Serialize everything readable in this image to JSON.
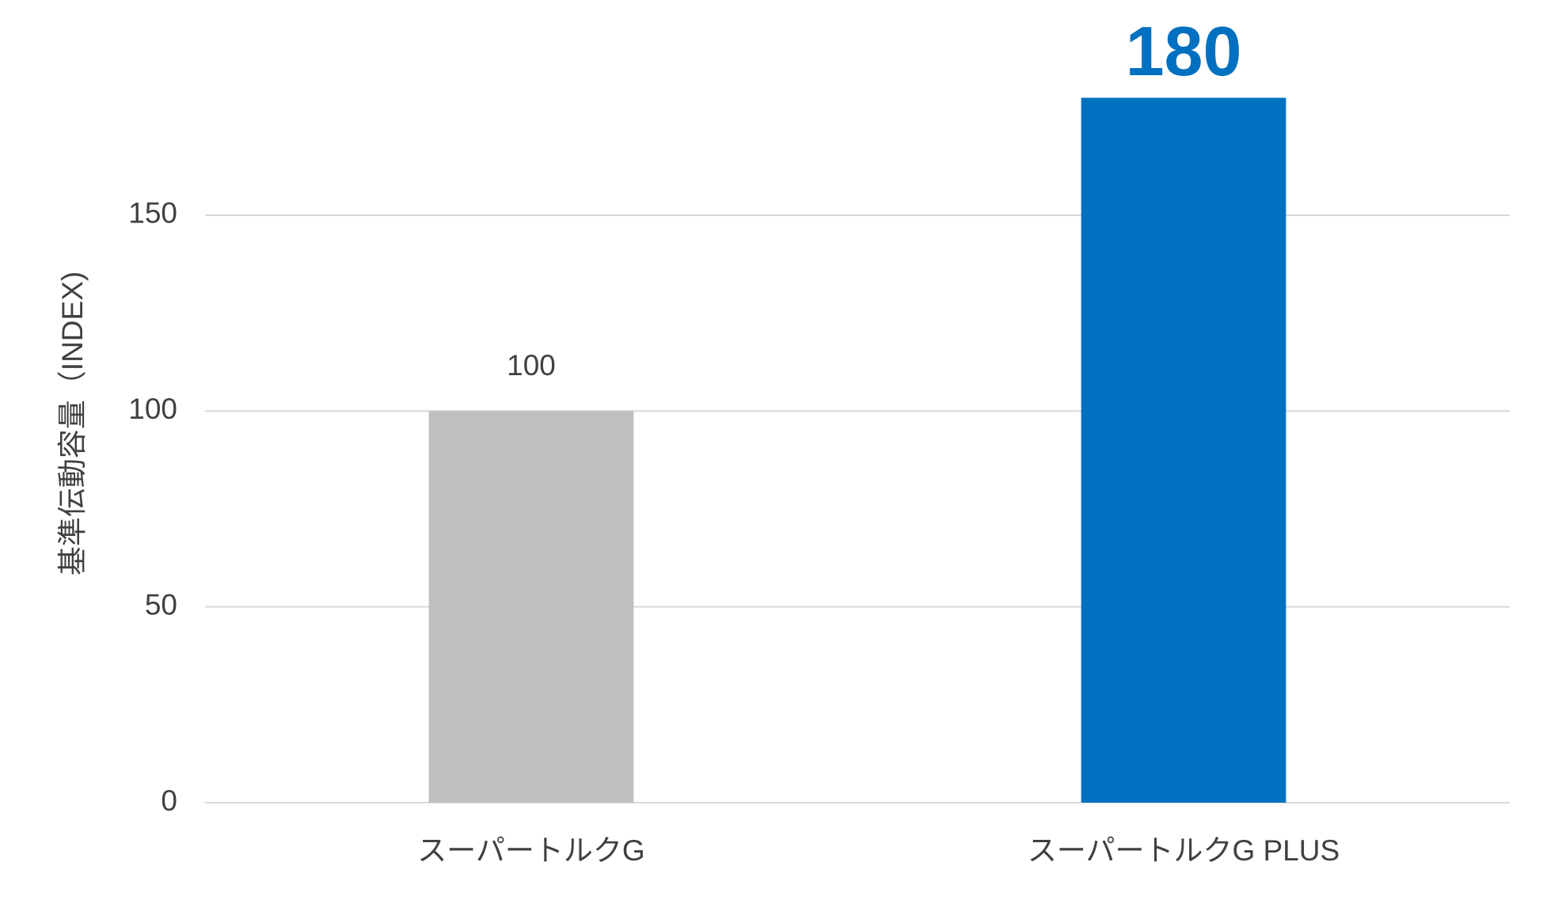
{
  "chart_data": {
    "type": "bar",
    "y_label": "基準伝動容量（INDEX)",
    "categories": [
      "スーパートルクG",
      "スーパートルクG PLUS"
    ],
    "values": [
      100,
      180
    ],
    "colors": [
      "#bfbfbf",
      "#0070c0"
    ],
    "ylim": [
      0,
      200
    ],
    "yticks": [
      0,
      50,
      100,
      150
    ],
    "grid": true
  }
}
